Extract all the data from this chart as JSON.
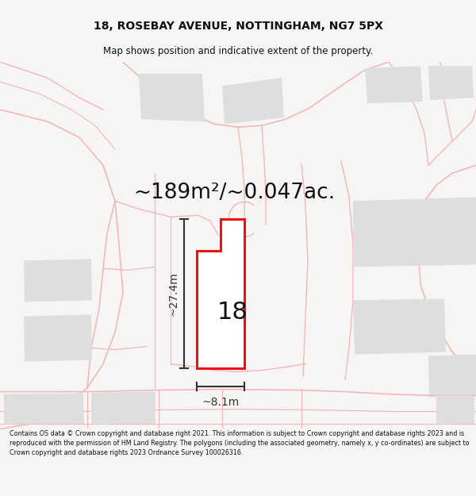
{
  "title": "18, ROSEBAY AVENUE, NOTTINGHAM, NG7 5PX",
  "subtitle": "Map shows position and indicative extent of the property.",
  "area_label": "~189m²/~0.047ac.",
  "property_number": "18",
  "dim_height": "~27.4m",
  "dim_width": "~8.1m",
  "footer": "Contains OS data © Crown copyright and database right 2021. This information is subject to Crown copyright and database rights 2023 and is reproduced with the permission of HM Land Registry. The polygons (including the associated geometry, namely x, y co-ordinates) are subject to Crown copyright and database rights 2023 Ordnance Survey 100026316.",
  "bg_color": "#f7f4f4",
  "map_bg": "#ffffff",
  "plot_color": "#ee1111",
  "dim_color": "#333333",
  "neighbor_color": "#f0b8b8",
  "neighbor_fill": "#dedede",
  "text_color": "#111111",
  "title_fontsize": 10,
  "subtitle_fontsize": 8.5,
  "area_fontsize": 19,
  "num_fontsize": 22,
  "dim_fontsize": 10,
  "footer_fontsize": 5.8
}
